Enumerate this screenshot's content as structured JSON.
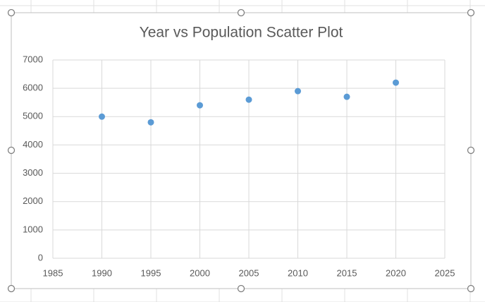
{
  "chart_data": {
    "type": "scatter",
    "title": "Year vs Population Scatter Plot",
    "x": [
      1990,
      1995,
      2000,
      2005,
      2010,
      2015,
      2020
    ],
    "series": [
      {
        "color": "#5b9bd5",
        "values": [
          5000,
          4800,
          5400,
          5600,
          5900,
          5700,
          6200
        ]
      }
    ],
    "xlim": [
      1985,
      2025
    ],
    "xticks": [
      1985,
      1990,
      1995,
      2000,
      2005,
      2010,
      2015,
      2020,
      2025
    ],
    "ylim": [
      0,
      7000
    ],
    "yticks": [
      0,
      1000,
      2000,
      3000,
      4000,
      5000,
      6000,
      7000
    ],
    "grid": true
  }
}
